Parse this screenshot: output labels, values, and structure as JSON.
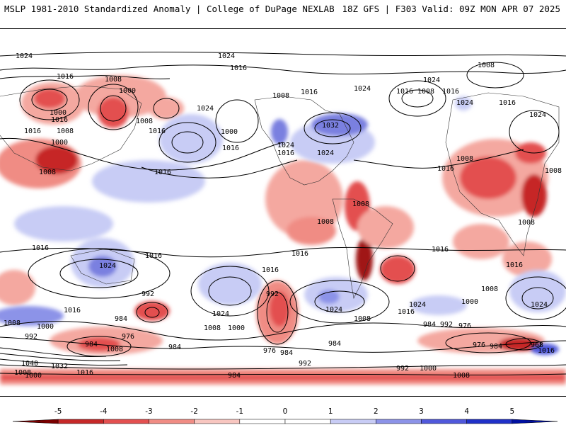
{
  "header": {
    "title_left": "MSLP 1981-2010 Standardized Anomaly | College of DuPage NEXLAB",
    "title_right": "18Z GFS | F303 Valid: 09Z MON APR 07 2025"
  },
  "isobar_labels": [
    "1024",
    "1016",
    "1008",
    "1000",
    "992",
    "984",
    "976",
    "968",
    "1032",
    "1040"
  ],
  "colorbar": {
    "ticks": [
      "-5",
      "-4",
      "-3",
      "-2",
      "-1",
      "0",
      "1",
      "2",
      "3",
      "4",
      "5"
    ],
    "colors": [
      "#7a0000",
      "#c62828",
      "#e35050",
      "#f08c84",
      "#f8c6c0",
      "#ffffff",
      "#ffffff",
      "#c8ccf5",
      "#8c93e8",
      "#5058db",
      "#2030c8",
      "#0010a0"
    ]
  },
  "colors": {
    "negative_anomaly": "#e8504a",
    "positive_anomaly": "#7a80e0",
    "isobar": "#000000"
  }
}
